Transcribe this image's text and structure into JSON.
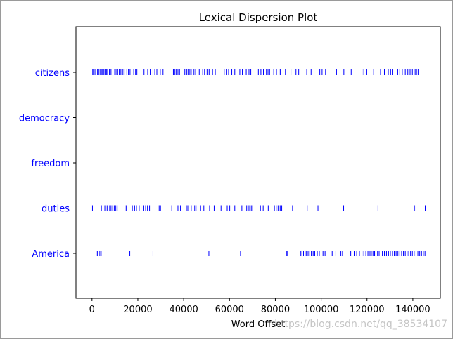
{
  "watermark": "https://blog.csdn.net/qq_38534107",
  "colors": {
    "marker": "#0000ff",
    "label": "#0000ff",
    "axis": "#000000",
    "background": "#ffffff"
  },
  "chart_data": {
    "type": "scatter",
    "title": "Lexical Dispersion Plot",
    "xlabel": "Word Offset",
    "ylabel": "",
    "xlim": [
      -7000,
      152000
    ],
    "xticks": [
      0,
      20000,
      40000,
      60000,
      80000,
      100000,
      120000,
      140000
    ],
    "xtick_labels": [
      "0",
      "20000",
      "40000",
      "60000",
      "80000",
      "100000",
      "120000",
      "140000"
    ],
    "grid": false,
    "marker": "|",
    "series": [
      {
        "name": "citizens",
        "x": [
          300,
          700,
          1300,
          2400,
          2900,
          3500,
          4100,
          4600,
          5200,
          5700,
          6300,
          6800,
          7600,
          8300,
          9900,
          10500,
          11200,
          11900,
          12600,
          13500,
          14300,
          15200,
          15900,
          16600,
          17400,
          18200,
          19000,
          19600,
          22700,
          24300,
          25400,
          26600,
          27400,
          28300,
          29800,
          31000,
          34900,
          35500,
          36200,
          36800,
          37500,
          38200,
          40500,
          41300,
          41900,
          42700,
          43300,
          44500,
          45200,
          46800,
          48300,
          49100,
          50200,
          51100,
          52600,
          53800,
          57700,
          58800,
          59600,
          61000,
          62300,
          64500,
          65600,
          67300,
          68500,
          69300,
          72600,
          73700,
          74800,
          76100,
          76800,
          77500,
          79300,
          80500,
          81600,
          82200,
          84400,
          86800,
          89000,
          90200,
          93700,
          95600,
          99400,
          100400,
          101900,
          106700,
          109900,
          113100,
          117800,
          118600,
          119900,
          122900,
          125900,
          127600,
          129300,
          130300,
          131000,
          133400,
          134300,
          135400,
          136700,
          137800,
          138800,
          139800,
          141000,
          141600,
          142300
        ]
      },
      {
        "name": "democracy",
        "x": []
      },
      {
        "name": "freedom",
        "x": []
      },
      {
        "name": "duties",
        "x": [
          200,
          4100,
          5600,
          6600,
          7700,
          8300,
          9000,
          9700,
          10400,
          11000,
          14400,
          15000,
          17600,
          18600,
          19400,
          20600,
          21400,
          22600,
          23400,
          24200,
          25100,
          29300,
          29900,
          34800,
          37500,
          38600,
          41200,
          41800,
          43300,
          44800,
          45400,
          47400,
          48800,
          51300,
          53300,
          56300,
          59000,
          60100,
          62300,
          65400,
          67500,
          68500,
          69500,
          70100,
          73500,
          74700,
          76900,
          79600,
          80400,
          81200,
          82100,
          82800,
          87500,
          93900,
          98600,
          109800,
          124800,
          140700,
          141400,
          145400
        ]
      },
      {
        "name": "America",
        "x": [
          1800,
          2400,
          3400,
          4000,
          16500,
          17400,
          26600,
          51000,
          64800,
          85000,
          85400,
          91000,
          91600,
          92300,
          93000,
          93600,
          94300,
          95000,
          95700,
          96500,
          97200,
          98300,
          99200,
          100800,
          101700,
          104800,
          106400,
          108600,
          109300,
          112900,
          114400,
          115500,
          116700,
          117800,
          118600,
          119500,
          120400,
          121300,
          121900,
          122600,
          123300,
          123900,
          124600,
          125300,
          126700,
          127600,
          128500,
          129400,
          130200,
          131100,
          131900,
          132700,
          133500,
          134300,
          135100,
          135900,
          136700,
          137500,
          138200,
          139000,
          139800,
          140600,
          141400,
          142200,
          143000,
          143800,
          144600,
          145300
        ]
      }
    ]
  }
}
